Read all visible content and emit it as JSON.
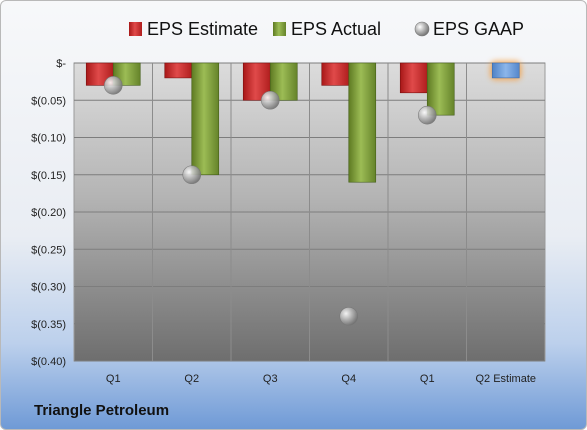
{
  "company_name": "Triangle Petroleum",
  "chart_data": {
    "type": "bar",
    "categories": [
      "Q1",
      "Q2",
      "Q3",
      "Q4",
      "Q1",
      "Q2 Estimate"
    ],
    "series": [
      {
        "name": "EPS Estimate",
        "kind": "bar",
        "color": "#cc2a2a",
        "values": [
          -0.03,
          -0.02,
          -0.05,
          -0.03,
          -0.04,
          null
        ]
      },
      {
        "name": "EPS Actual",
        "kind": "bar",
        "color": "#7e9c3a",
        "values": [
          -0.03,
          -0.15,
          -0.05,
          -0.16,
          -0.07,
          -0.02
        ]
      },
      {
        "name": "EPS GAAP",
        "kind": "point",
        "color": "#9a9a9a",
        "values": [
          -0.03,
          -0.15,
          -0.05,
          -0.34,
          -0.07,
          null
        ]
      }
    ],
    "projected_bar_color": "#6a9ad8",
    "projected_glow_color": "#f5a044",
    "y_ticks": [
      "$-",
      "$(0.05)",
      "$(0.10)",
      "$(0.15)",
      "$(0.20)",
      "$(0.25)",
      "$(0.30)",
      "$(0.35)",
      "$(0.40)"
    ],
    "ylim": [
      -0.4,
      0
    ],
    "grid": true,
    "legend_position": "top",
    "title": "",
    "xlabel": "",
    "ylabel": ""
  }
}
